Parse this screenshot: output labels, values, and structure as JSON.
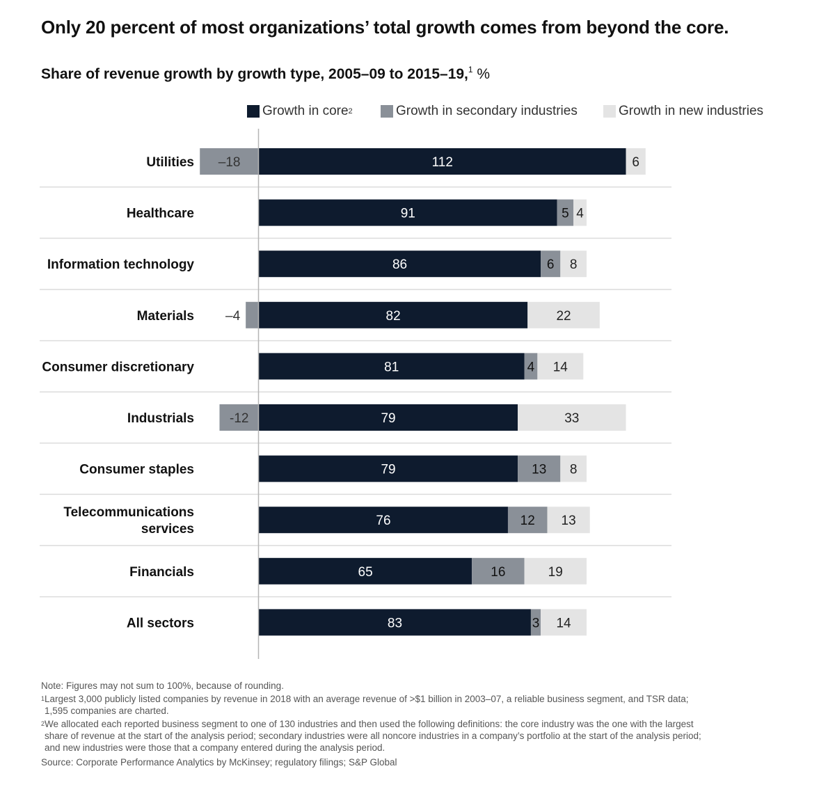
{
  "colors": {
    "core": "#0e1b2e",
    "secondary": "#8a9098",
    "new": "#e4e4e4",
    "axis": "#b5b5b5",
    "separator": "#dcdcdc"
  },
  "heading": {
    "title": "Only 20 percent of most organizations’ total growth comes from beyond the core.",
    "subtitle": "Share of revenue growth by growth type, 2005–09 to 2015–19,",
    "subtitle_sup": "1",
    "subtitle_unit": " %"
  },
  "legend": {
    "core": "Growth in core",
    "core_sup": "2",
    "secondary": "Growth in secondary industries",
    "new": "Growth in new industries"
  },
  "chart_data": {
    "type": "bar",
    "orientation": "horizontal",
    "stacked": true,
    "title": "Share of revenue growth by growth type, 2005–09 to 2015–19, %",
    "categories": [
      [
        "Utilities"
      ],
      [
        "Healthcare"
      ],
      [
        "Information technology"
      ],
      [
        "Materials"
      ],
      [
        "Consumer discretionary"
      ],
      [
        "Industrials"
      ],
      [
        "Consumer staples"
      ],
      [
        "Telecommunications",
        "services"
      ],
      [
        "Financials"
      ],
      [
        "All sectors"
      ]
    ],
    "series": [
      {
        "name": "Growth in core",
        "values": [
          112,
          91,
          86,
          82,
          81,
          79,
          79,
          76,
          65,
          83
        ],
        "labels": [
          "112",
          "91",
          "86",
          "82",
          "81",
          "79",
          "79",
          "76",
          "65",
          "83"
        ]
      },
      {
        "name": "Growth in secondary industries",
        "values": [
          -18,
          5,
          6,
          -4,
          4,
          -12,
          13,
          12,
          16,
          3
        ],
        "labels": [
          "–18",
          "5",
          "6",
          "–4",
          "4",
          "-12",
          "13",
          "12",
          "16",
          "3"
        ]
      },
      {
        "name": "Growth in new industries",
        "values": [
          6,
          4,
          8,
          22,
          14,
          33,
          8,
          13,
          19,
          14
        ],
        "labels": [
          "6",
          "4",
          "8",
          "22",
          "14",
          "33",
          "8",
          "13",
          "19",
          "14"
        ]
      }
    ],
    "xlim": [
      -18,
      118
    ]
  },
  "notes": {
    "note": "Note: Figures may not sum to 100%, because of rounding.",
    "fn1_mark": "1",
    "fn1": "Largest 3,000 publicly listed companies by revenue in 2018 with an average revenue of >$1 billion in 2003–07, a reliable business segment, and TSR data;",
    "fn1_cont": "1,595 companies are charted.",
    "fn2_mark": "2",
    "fn2": "We allocated each reported business segment to one of 130 industries and then used the following definitions: the core industry was the one with the largest",
    "fn2_cont1": "share of revenue at the start of the analysis period; secondary industries were all noncore industries in a company’s portfolio at the start of the analysis period;",
    "fn2_cont2": "and new industries were those that a company entered during the analysis period.",
    "source": "Source: Corporate Performance Analytics by McKinsey; regulatory filings; S&P Global"
  }
}
